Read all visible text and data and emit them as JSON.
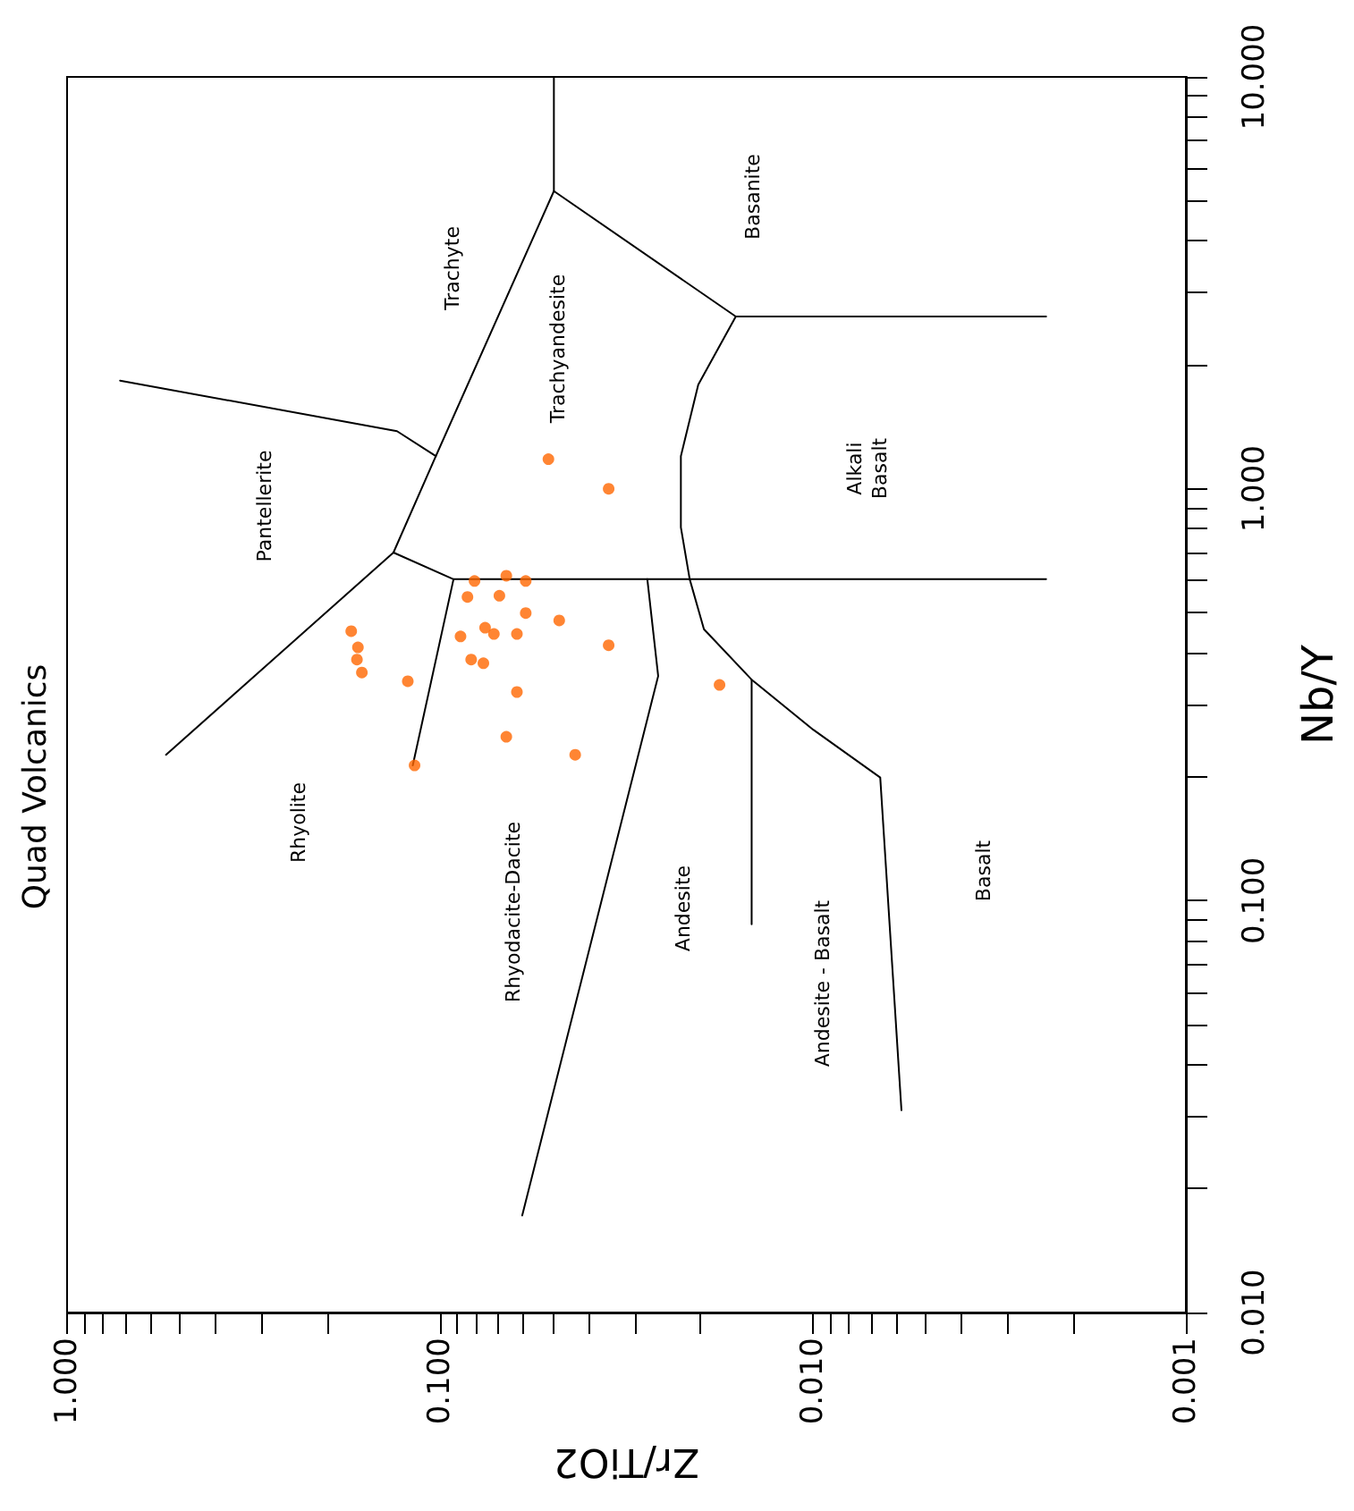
{
  "chart_data": {
    "type": "scatter",
    "title": "Quad Volcanics",
    "xlabel": "Zr/TiO2",
    "ylabel": "Nb/Y",
    "log": "xy",
    "grid": false,
    "marker": "circle",
    "xlim": [
      1,
      0.001
    ],
    "ylim": [
      0.01,
      10
    ],
    "xticks": [
      {
        "value": 1,
        "label": "1.000"
      },
      {
        "value": 0.9,
        "label": null
      },
      {
        "value": 0.8,
        "label": null
      },
      {
        "value": 0.7,
        "label": null
      },
      {
        "value": 0.6,
        "label": null
      },
      {
        "value": 0.5,
        "label": null
      },
      {
        "value": 0.4,
        "label": null
      },
      {
        "value": 0.3,
        "label": null
      },
      {
        "value": 0.2,
        "label": null
      },
      {
        "value": 0.1,
        "label": "0.100"
      },
      {
        "value": 0.09,
        "label": null
      },
      {
        "value": 0.08,
        "label": null
      },
      {
        "value": 0.07,
        "label": null
      },
      {
        "value": 0.06,
        "label": null
      },
      {
        "value": 0.05,
        "label": null
      },
      {
        "value": 0.04,
        "label": null
      },
      {
        "value": 0.03,
        "label": null
      },
      {
        "value": 0.02,
        "label": null
      },
      {
        "value": 0.01,
        "label": "0.010"
      },
      {
        "value": 0.009,
        "label": null
      },
      {
        "value": 0.008,
        "label": null
      },
      {
        "value": 0.007,
        "label": null
      },
      {
        "value": 0.006,
        "label": null
      },
      {
        "value": 0.005,
        "label": null
      },
      {
        "value": 0.004,
        "label": null
      },
      {
        "value": 0.003,
        "label": null
      },
      {
        "value": 0.002,
        "label": null
      },
      {
        "value": 0.001,
        "label": "0.001"
      }
    ],
    "yticks": [
      {
        "value": 0.01,
        "label": "0.010"
      },
      {
        "value": 0.02,
        "label": null
      },
      {
        "value": 0.03,
        "label": null
      },
      {
        "value": 0.04,
        "label": null
      },
      {
        "value": 0.05,
        "label": null
      },
      {
        "value": 0.06,
        "label": null
      },
      {
        "value": 0.07,
        "label": null
      },
      {
        "value": 0.08,
        "label": null
      },
      {
        "value": 0.09,
        "label": null
      },
      {
        "value": 0.1,
        "label": "0.100"
      },
      {
        "value": 0.2,
        "label": null
      },
      {
        "value": 0.3,
        "label": null
      },
      {
        "value": 0.4,
        "label": null
      },
      {
        "value": 0.5,
        "label": null
      },
      {
        "value": 0.6,
        "label": null
      },
      {
        "value": 0.7,
        "label": null
      },
      {
        "value": 0.8,
        "label": null
      },
      {
        "value": 0.9,
        "label": null
      },
      {
        "value": 1,
        "label": "1.000"
      },
      {
        "value": 2,
        "label": null
      },
      {
        "value": 3,
        "label": null
      },
      {
        "value": 4,
        "label": null
      },
      {
        "value": 5,
        "label": null
      },
      {
        "value": 6,
        "label": null
      },
      {
        "value": 7,
        "label": null
      },
      {
        "value": 8,
        "label": null
      },
      {
        "value": 9,
        "label": null
      },
      {
        "value": 10,
        "label": "10.000"
      }
    ],
    "series": [
      {
        "color": "#ff6600",
        "x": [
          0.0512,
          0.0353,
          0.0664,
          0.0808,
          0.0589,
          0.0844,
          0.0693,
          0.0589,
          0.0479,
          0.0757,
          0.0881,
          0.0717,
          0.0622,
          0.173,
          0.166,
          0.0353,
          0.167,
          0.0825,
          0.0765,
          0.162,
          0.122,
          0.0178,
          0.0622,
          0.0664,
          0.0434,
          0.117
        ],
        "values": [
          1.18,
          1.0,
          0.615,
          0.597,
          0.597,
          0.546,
          0.55,
          0.499,
          0.479,
          0.46,
          0.438,
          0.444,
          0.444,
          0.451,
          0.412,
          0.417,
          0.385,
          0.385,
          0.377,
          0.358,
          0.341,
          0.334,
          0.321,
          0.25,
          0.226,
          0.213
        ]
      },
      {
        "type": "line",
        "color": "#000000",
        "marker": "none",
        "line_style": "solid",
        "x": [
          0.721,
          0.1304,
          0.1026
        ],
        "values": [
          1.83,
          1.38,
          1.2
        ]
      },
      {
        "type": "line",
        "color": "#000000",
        "marker": "none",
        "line_style": "solid",
        "x": [
          0.543,
          0.1333,
          0.1026,
          0.0495,
          0.0495
        ],
        "values": [
          0.226,
          0.7,
          1.2,
          5.28,
          10
        ]
      },
      {
        "type": "line",
        "color": "#000000",
        "marker": "none",
        "line_style": "solid",
        "x": [
          0.0495,
          0.0161,
          0.00237
        ],
        "values": [
          5.28,
          2.62,
          2.62
        ]
      },
      {
        "type": "line",
        "color": "#000000",
        "marker": "none",
        "line_style": "solid",
        "x": [
          0.0161,
          0.0203,
          0.0226,
          0.0226,
          0.0214,
          0.0196,
          0.0146,
          0.00998,
          0.0066,
          0.00579
        ],
        "values": [
          2.62,
          1.79,
          1.2,
          0.806,
          0.603,
          0.456,
          0.344,
          0.26,
          0.199,
          0.031
        ]
      },
      {
        "type": "line",
        "color": "#000000",
        "marker": "none",
        "line_style": "solid",
        "x": [
          0.1333,
          0.092,
          0.00237
        ],
        "values": [
          0.7,
          0.603,
          0.603
        ]
      },
      {
        "type": "line",
        "color": "#000000",
        "marker": "none",
        "line_style": "solid",
        "x": [
          0.092,
          0.1183
        ],
        "values": [
          0.603,
          0.213
        ]
      },
      {
        "type": "line",
        "color": "#000000",
        "marker": "none",
        "line_style": "solid",
        "x": [
          0.0278,
          0.026,
          0.0602
        ],
        "values": [
          0.603,
          0.351,
          0.0172
        ]
      },
      {
        "type": "line",
        "color": "#000000",
        "marker": "none",
        "line_style": "solid",
        "x": [
          0.0146,
          0.0146
        ],
        "values": [
          0.344,
          0.0876
        ]
      }
    ],
    "annotations": [
      "Trachyte",
      "Trachyandesite",
      "Basanite",
      "Pantellerite",
      "Alkali\nBasalt",
      "Rhyolite",
      "Rhyodacite-Dacite",
      "Andesite",
      "Andesite - Basalt",
      "Basalt"
    ]
  }
}
